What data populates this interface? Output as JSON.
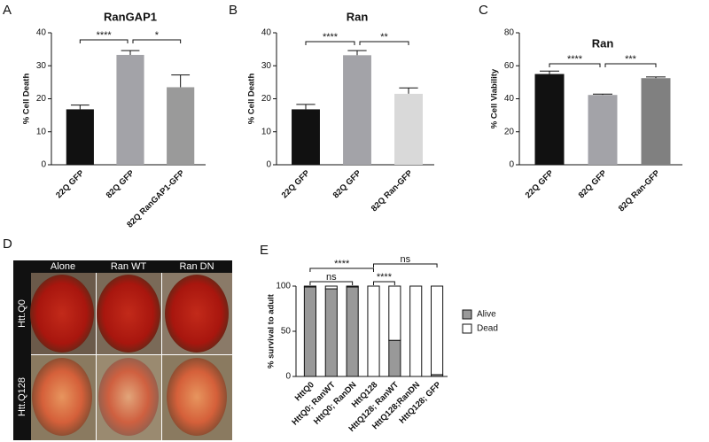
{
  "chart_data": [
    {
      "type": "bar",
      "panel": "A",
      "title": "RanGAP1",
      "y_label": "% Cell Death",
      "categories": [
        "22Q GFP",
        "82Q GFP",
        "82Q RanGAP1-GFP"
      ],
      "values": [
        16.8,
        33.3,
        23.5
      ],
      "errors": [
        1.3,
        1.3,
        3.7
      ],
      "colors": [
        "#111111",
        "#a3a3a8",
        "#9a9a9a"
      ],
      "ylim": [
        0,
        40
      ],
      "yticks": [
        0,
        10,
        20,
        30,
        40
      ],
      "annotations": [
        "****",
        "*"
      ]
    },
    {
      "type": "bar",
      "panel": "B",
      "title": "Ran",
      "y_label": "% Cell Death",
      "categories": [
        "22Q GFP",
        "82Q GFP",
        "82Q Ran-GFP"
      ],
      "values": [
        16.8,
        33.2,
        21.5
      ],
      "errors": [
        1.5,
        1.4,
        1.8
      ],
      "colors": [
        "#111111",
        "#a3a3a8",
        "#d9d9d9"
      ],
      "ylim": [
        0,
        40
      ],
      "yticks": [
        0,
        10,
        20,
        30,
        40
      ],
      "annotations": [
        "****",
        "**"
      ]
    },
    {
      "type": "bar",
      "panel": "C",
      "title": "Ran",
      "y_label": "% Cell Viability",
      "categories": [
        "22Q GFP",
        "82Q GFP",
        "82Q Ran-GFP"
      ],
      "values": [
        55,
        42.3,
        52.5
      ],
      "errors": [
        1.8,
        0.5,
        0.7
      ],
      "colors": [
        "#111111",
        "#a3a3a8",
        "#808080"
      ],
      "ylim": [
        0,
        80
      ],
      "yticks": [
        0,
        20,
        40,
        60,
        80
      ],
      "annotations": [
        "****",
        "***"
      ]
    },
    {
      "type": "stacked_bar",
      "panel": "E",
      "y_label": "% survival to adult",
      "categories": [
        "HttQ0",
        "HttQ0; RanWT",
        "HttQ0; RanDN",
        "HttQ128",
        "HttQ128; RanWT",
        "HttQ128;RanDN",
        "HttQ128; GFP"
      ],
      "series": [
        {
          "name": "Alive",
          "color": "#999999",
          "values": [
            99,
            97,
            99,
            0,
            40,
            0,
            2
          ]
        },
        {
          "name": "Dead",
          "color": "#ffffff",
          "values": [
            1,
            3,
            1,
            100,
            60,
            100,
            98
          ]
        }
      ],
      "ylim": [
        0,
        100
      ],
      "yticks": [
        0,
        50,
        100
      ],
      "legend": "right",
      "annotations": [
        "****",
        "ns",
        "****",
        "ns"
      ]
    }
  ],
  "image_grid": {
    "panel": "D",
    "columns": [
      "Alone",
      "Ran WT",
      "Ran DN"
    ],
    "rows": [
      "Htt.Q0",
      "Htt.Q128"
    ]
  }
}
